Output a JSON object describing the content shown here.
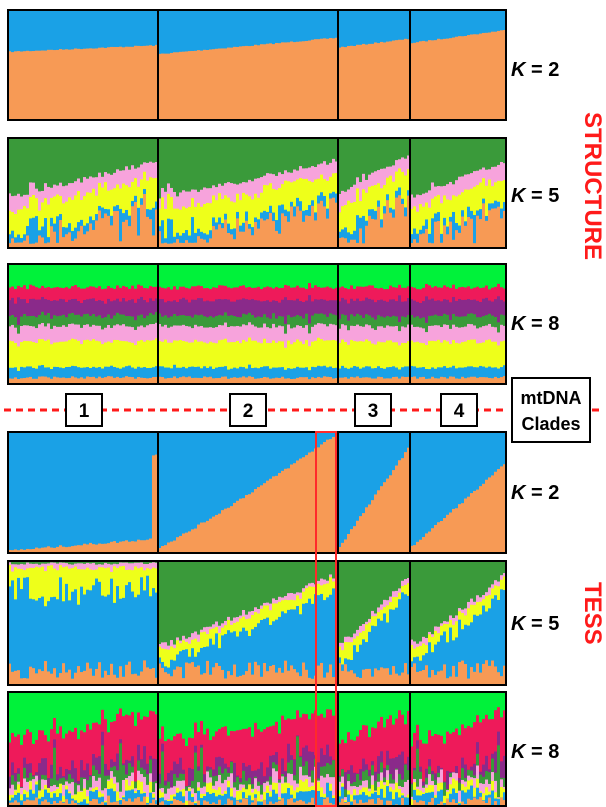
{
  "colors": {
    "orange": "#f79a55",
    "blue": "#1aa1e6",
    "green_dark": "#3a9a3a",
    "pink": "#f7a3dc",
    "yellow": "#eeff1a",
    "green_bright": "#00f23a",
    "crimson": "#ee1a5a",
    "purple": "#8a2a8a",
    "highlight": "#ff2a2a",
    "method_label": "#ff1a1a"
  },
  "methods": [
    {
      "name": "STRUCTURE"
    },
    {
      "name": "TESS"
    }
  ],
  "k_labels": [
    {
      "k": "K",
      "rest": " = 2"
    },
    {
      "k": "K",
      "rest": " = 5"
    },
    {
      "k": "K",
      "rest": " = 8"
    },
    {
      "k": "K",
      "rest": " = 2"
    },
    {
      "k": "K",
      "rest": " = 5"
    },
    {
      "k": "K",
      "rest": " = 8"
    }
  ],
  "clades": [
    {
      "label": "1"
    },
    {
      "label": "2"
    },
    {
      "label": "3"
    },
    {
      "label": "4"
    }
  ],
  "mtdna_label": {
    "line1": "mtDNA",
    "line2": "Clades"
  }
}
